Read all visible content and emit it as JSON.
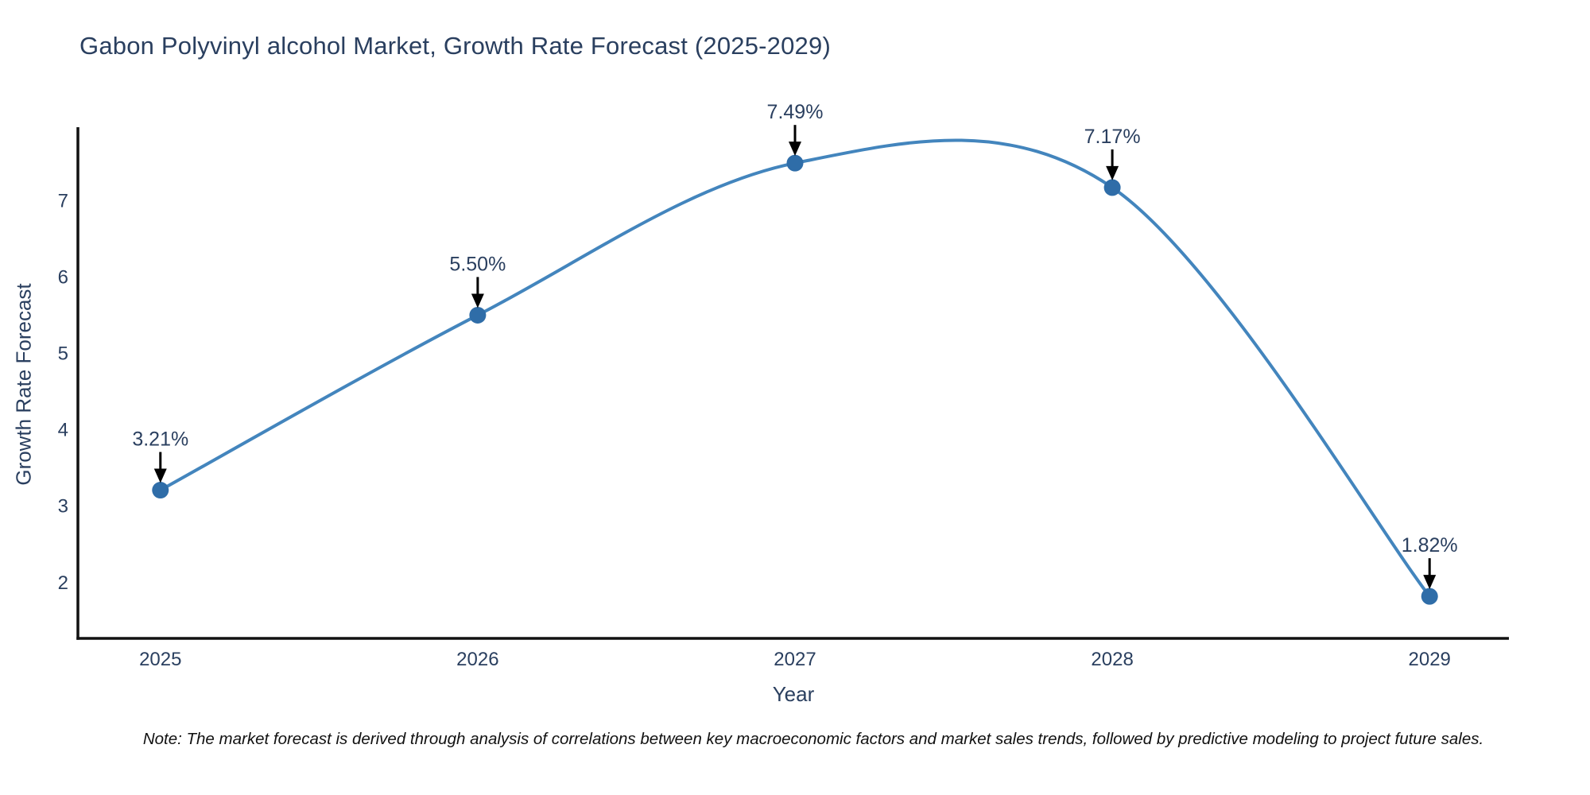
{
  "title": "Gabon Polyvinyl alcohol Market, Growth Rate Forecast (2025-2029)",
  "note": "Note: The market forecast is derived through analysis of correlations between key macroeconomic factors and market sales trends, followed by predictive modeling to project future sales.",
  "chart_data": {
    "type": "line",
    "line_shape": "spline",
    "title": "Gabon Polyvinyl alcohol Market, Growth Rate Forecast (2025-2029)",
    "xlabel": "Year",
    "ylabel": "Growth Rate Forecast",
    "categories": [
      "2025",
      "2026",
      "2027",
      "2028",
      "2029"
    ],
    "x": [
      2025,
      2026,
      2027,
      2028,
      2029
    ],
    "values": [
      3.21,
      5.5,
      7.49,
      7.17,
      1.82
    ],
    "point_labels": [
      "3.21%",
      "5.50%",
      "7.49%",
      "7.17%",
      "1.82%"
    ],
    "yticks": [
      2,
      3,
      4,
      5,
      6,
      7
    ],
    "xlim": [
      2024.74,
      2029.25
    ],
    "ylim": [
      1.27,
      7.96
    ],
    "grid": false,
    "legend_position": "none",
    "colors": {
      "line": "#4385bd",
      "marker": "#2f6da8",
      "title_text": "#2a3f5f",
      "tick_text": "#2a3f5f",
      "annotation_text": "#2a3f5f",
      "annotation_arrow": "#000000",
      "axis_line": "#111111",
      "background": "#ffffff"
    }
  }
}
